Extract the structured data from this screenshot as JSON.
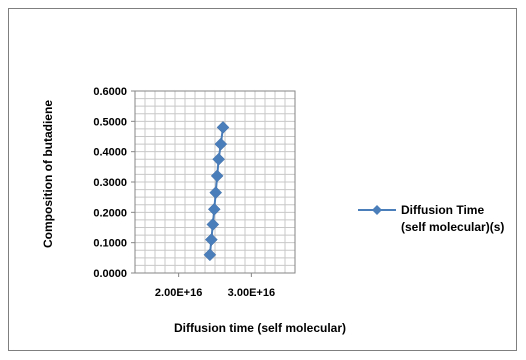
{
  "chart_data": {
    "type": "scatter",
    "title": "",
    "xlabel": "Diffusion time (self molecular)",
    "ylabel": "Composition of butadiene",
    "xlim": [
      1.4e+16,
      3.6e+16
    ],
    "ylim": [
      0.0,
      0.6
    ],
    "x_ticks": [
      {
        "value": 2e+16,
        "label": "2.00E+16"
      },
      {
        "value": 3e+16,
        "label": "3.00E+16"
      }
    ],
    "y_ticks": [
      {
        "value": 0.0,
        "label": "0.0000"
      },
      {
        "value": 0.1,
        "label": "0.1000"
      },
      {
        "value": 0.2,
        "label": "0.2000"
      },
      {
        "value": 0.3,
        "label": "0.3000"
      },
      {
        "value": 0.4,
        "label": "0.4000"
      },
      {
        "value": 0.5,
        "label": "0.5000"
      },
      {
        "value": 0.6,
        "label": "0.6000"
      }
    ],
    "grid": true,
    "legend_position": "right",
    "series": [
      {
        "name": "Diffusion Time (self molecular)(s)",
        "name_lines": [
          "Diffusion Time",
          "(self molecular)(s)"
        ],
        "color": "#4a7ebb",
        "marker": "diamond",
        "points": [
          {
            "x": 2.43e+16,
            "y": 0.06
          },
          {
            "x": 2.45e+16,
            "y": 0.11
          },
          {
            "x": 2.47e+16,
            "y": 0.16
          },
          {
            "x": 2.49e+16,
            "y": 0.21
          },
          {
            "x": 2.51e+16,
            "y": 0.265
          },
          {
            "x": 2.53e+16,
            "y": 0.32
          },
          {
            "x": 2.55e+16,
            "y": 0.375
          },
          {
            "x": 2.58e+16,
            "y": 0.425
          },
          {
            "x": 2.61e+16,
            "y": 0.48
          }
        ]
      }
    ]
  }
}
